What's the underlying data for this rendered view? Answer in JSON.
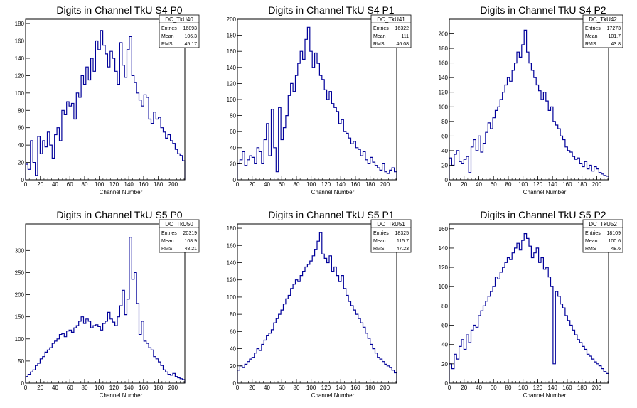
{
  "chart_data": [
    {
      "type": "histogram",
      "name": "DC_TkU40",
      "title": "Digits in Channel TkU S4 P0",
      "xlabel": "Channel Number",
      "xlim": [
        0,
        216
      ],
      "ylim": [
        0,
        185
      ],
      "xticks": [
        0,
        20,
        40,
        60,
        80,
        100,
        120,
        140,
        160,
        180,
        200
      ],
      "yticks": [
        0,
        20,
        40,
        60,
        80,
        100,
        120,
        140,
        160,
        180
      ],
      "stats": [
        [
          "Entries",
          "16893"
        ],
        [
          "Mean",
          "106.3"
        ],
        [
          "RMS",
          "45.17"
        ]
      ],
      "series": [
        {
          "values": [
            18,
            12,
            45,
            20,
            5,
            50,
            30,
            45,
            38,
            55,
            40,
            25,
            52,
            60,
            45,
            80,
            75,
            90,
            85,
            88,
            70,
            100,
            95,
            120,
            110,
            130,
            115,
            140,
            125,
            160,
            150,
            172,
            155,
            145,
            130,
            148,
            140,
            125,
            110,
            158,
            132,
            118,
            150,
            165,
            120,
            112,
            100,
            92,
            85,
            98,
            95,
            70,
            65,
            78,
            70,
            72,
            60,
            55,
            48,
            52,
            45,
            42,
            35,
            30,
            28,
            22
          ]
        }
      ]
    },
    {
      "type": "histogram",
      "name": "DC_TkU41",
      "title": "Digits in Channel TkU S4 P1",
      "xlabel": "Channel Number",
      "xlim": [
        0,
        216
      ],
      "ylim": [
        0,
        200
      ],
      "xticks": [
        0,
        20,
        40,
        60,
        80,
        100,
        120,
        140,
        160,
        180,
        200
      ],
      "yticks": [
        0,
        20,
        40,
        60,
        80,
        100,
        120,
        140,
        160,
        180,
        200
      ],
      "stats": [
        [
          "Entries",
          "16322"
        ],
        [
          "Mean",
          "111"
        ],
        [
          "RMS",
          "46.08"
        ]
      ],
      "series": [
        {
          "values": [
            20,
            25,
            35,
            18,
            25,
            30,
            28,
            20,
            40,
            35,
            20,
            50,
            70,
            30,
            88,
            40,
            10,
            90,
            50,
            65,
            80,
            105,
            120,
            110,
            130,
            145,
            160,
            150,
            175,
            190,
            160,
            140,
            158,
            145,
            130,
            125,
            112,
            100,
            110,
            95,
            90,
            85,
            70,
            75,
            60,
            58,
            52,
            45,
            48,
            40,
            38,
            30,
            35,
            25,
            20,
            28,
            22,
            18,
            15,
            12,
            20,
            10,
            8,
            12,
            15,
            10
          ]
        }
      ]
    },
    {
      "type": "histogram",
      "name": "DC_TkU42",
      "title": "Digits in Channel TkU S4 P2",
      "xlabel": "Channel Number",
      "xlim": [
        0,
        216
      ],
      "ylim": [
        0,
        220
      ],
      "xticks": [
        0,
        20,
        40,
        60,
        80,
        100,
        120,
        140,
        160,
        180,
        200
      ],
      "yticks": [
        0,
        20,
        40,
        60,
        80,
        100,
        120,
        140,
        160,
        180,
        200
      ],
      "stats": [
        [
          "Entries",
          "17273"
        ],
        [
          "Mean",
          "101.7"
        ],
        [
          "RMS",
          "43.8"
        ]
      ],
      "series": [
        {
          "values": [
            30,
            20,
            35,
            40,
            25,
            22,
            28,
            32,
            10,
            45,
            55,
            40,
            60,
            38,
            50,
            65,
            78,
            70,
            85,
            95,
            100,
            110,
            120,
            130,
            140,
            135,
            150,
            160,
            175,
            168,
            185,
            205,
            175,
            160,
            150,
            140,
            130,
            122,
            110,
            120,
            108,
            95,
            100,
            80,
            75,
            70,
            60,
            55,
            45,
            40,
            38,
            32,
            28,
            30,
            22,
            18,
            25,
            15,
            20,
            12,
            18,
            15,
            10,
            8,
            6,
            5
          ]
        }
      ]
    },
    {
      "type": "histogram",
      "name": "DC_TkU50",
      "title": "Digits in Channel TkU S5 P0",
      "xlabel": "Channel Number",
      "xlim": [
        0,
        216
      ],
      "ylim": [
        0,
        360
      ],
      "xticks": [
        0,
        20,
        40,
        60,
        80,
        100,
        120,
        140,
        160,
        180,
        200
      ],
      "yticks": [
        0,
        50,
        100,
        150,
        200,
        250,
        300
      ],
      "stats": [
        [
          "Entries",
          "20319"
        ],
        [
          "Mean",
          "108.9"
        ],
        [
          "RMS",
          "48.21"
        ]
      ],
      "series": [
        {
          "values": [
            15,
            20,
            25,
            30,
            40,
            45,
            55,
            60,
            70,
            75,
            80,
            90,
            95,
            100,
            110,
            112,
            105,
            118,
            120,
            115,
            125,
            130,
            140,
            150,
            135,
            145,
            140,
            125,
            130,
            132,
            128,
            120,
            135,
            140,
            160,
            145,
            138,
            130,
            150,
            175,
            210,
            155,
            190,
            330,
            235,
            250,
            180,
            110,
            140,
            95,
            90,
            80,
            75,
            60,
            55,
            48,
            40,
            30,
            25,
            20,
            18,
            22,
            15,
            12,
            10,
            8
          ]
        }
      ]
    },
    {
      "type": "histogram",
      "name": "DC_TkU51",
      "title": "Digits in Channel TkU S5 P1",
      "xlabel": "Channel Number",
      "xlim": [
        0,
        216
      ],
      "ylim": [
        0,
        185
      ],
      "xticks": [
        0,
        20,
        40,
        60,
        80,
        100,
        120,
        140,
        160,
        180,
        200
      ],
      "yticks": [
        0,
        20,
        40,
        60,
        80,
        100,
        120,
        140,
        160,
        180
      ],
      "stats": [
        [
          "Entries",
          "18325"
        ],
        [
          "Mean",
          "115.7"
        ],
        [
          "RMS",
          "47.23"
        ]
      ],
      "series": [
        {
          "values": [
            15,
            20,
            18,
            22,
            25,
            28,
            30,
            35,
            40,
            38,
            45,
            50,
            55,
            58,
            62,
            70,
            75,
            80,
            85,
            92,
            98,
            102,
            110,
            115,
            120,
            118,
            125,
            130,
            135,
            138,
            142,
            148,
            155,
            165,
            175,
            150,
            145,
            140,
            148,
            130,
            135,
            125,
            118,
            125,
            110,
            102,
            95,
            90,
            85,
            80,
            75,
            70,
            65,
            58,
            52,
            45,
            40,
            35,
            30,
            28,
            25,
            22,
            20,
            18,
            15,
            12
          ]
        }
      ]
    },
    {
      "type": "histogram",
      "name": "DC_TkU52",
      "title": "Digits in Channel TkU S5 P2",
      "xlabel": "Channel Number",
      "xlim": [
        0,
        216
      ],
      "ylim": [
        0,
        165
      ],
      "xticks": [
        0,
        20,
        40,
        60,
        80,
        100,
        120,
        140,
        160,
        180,
        200
      ],
      "yticks": [
        0,
        20,
        40,
        60,
        80,
        100,
        120,
        140,
        160
      ],
      "stats": [
        [
          "Entries",
          "18109"
        ],
        [
          "Mean",
          "100.6"
        ],
        [
          "RMS",
          "48.6"
        ]
      ],
      "series": [
        {
          "values": [
            20,
            15,
            30,
            25,
            38,
            45,
            35,
            50,
            42,
            55,
            60,
            58,
            70,
            75,
            80,
            85,
            90,
            95,
            100,
            110,
            108,
            115,
            120,
            125,
            130,
            128,
            135,
            140,
            145,
            138,
            148,
            155,
            150,
            142,
            130,
            135,
            140,
            125,
            130,
            118,
            120,
            110,
            100,
            20,
            95,
            90,
            82,
            78,
            70,
            65,
            60,
            55,
            50,
            45,
            42,
            38,
            35,
            30,
            28,
            25,
            22,
            20,
            18,
            15,
            12,
            10
          ]
        }
      ]
    }
  ]
}
